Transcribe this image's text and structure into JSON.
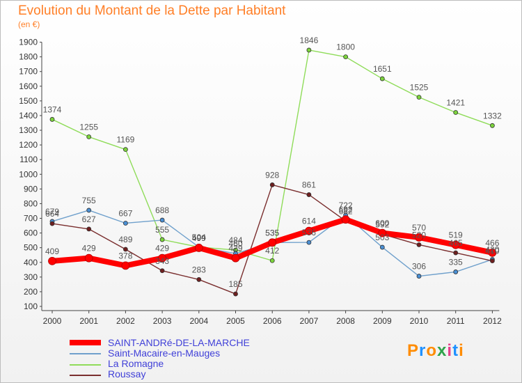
{
  "title": "Evolution du Montant de la Dette par Habitant",
  "unit_label": "(en €)",
  "logo": {
    "text": "Proxiti",
    "colors": [
      "#ff8c00",
      "#1e90ff",
      "#ff8c00",
      "#2fa34c",
      "#e83e8c",
      "#1e90ff",
      "#ff8c00"
    ]
  },
  "chart_data": {
    "type": "line",
    "x": [
      "2000",
      "2001",
      "2002",
      "2003",
      "2004",
      "2005",
      "2006",
      "2007",
      "2008",
      "2009",
      "2010",
      "2011",
      "2012"
    ],
    "ylim": [
      100,
      1900
    ],
    "yticks": [
      100,
      200,
      300,
      400,
      500,
      600,
      700,
      800,
      900,
      1000,
      1100,
      1200,
      1300,
      1400,
      1500,
      1600,
      1700,
      1800,
      1900
    ],
    "grid": false,
    "legend_position": "bottom-left",
    "series": [
      {
        "name": "SAINT-ANDRé-DE-LA-MARCHE",
        "color": "#ff0000",
        "marker": "#ff0000",
        "values": [
          409,
          429,
          378,
          429,
          499,
          429,
          535,
          614,
          692,
          600,
          570,
          519,
          466
        ]
      },
      {
        "name": "Saint-Macaire-en-Mauges",
        "color": "#6fa0cc",
        "marker": "#4a8fd4",
        "values": [
          679,
          755,
          667,
          688,
          504,
          460,
          535,
          536,
          722,
          503,
          306,
          335,
          420
        ]
      },
      {
        "name": "La Romagne",
        "color": "#8fdc59",
        "marker": "#7cd43c",
        "values": [
          1374,
          1255,
          1169,
          555,
          504,
          484,
          412,
          1846,
          1800,
          1651,
          1525,
          1421,
          1332
        ]
      },
      {
        "name": "Roussay",
        "color": "#7a2e2e",
        "marker": "#6e1f1f",
        "values": [
          664,
          627,
          489,
          343,
          283,
          185,
          928,
          861,
          682,
          592,
          520,
          465,
          410
        ]
      }
    ]
  }
}
